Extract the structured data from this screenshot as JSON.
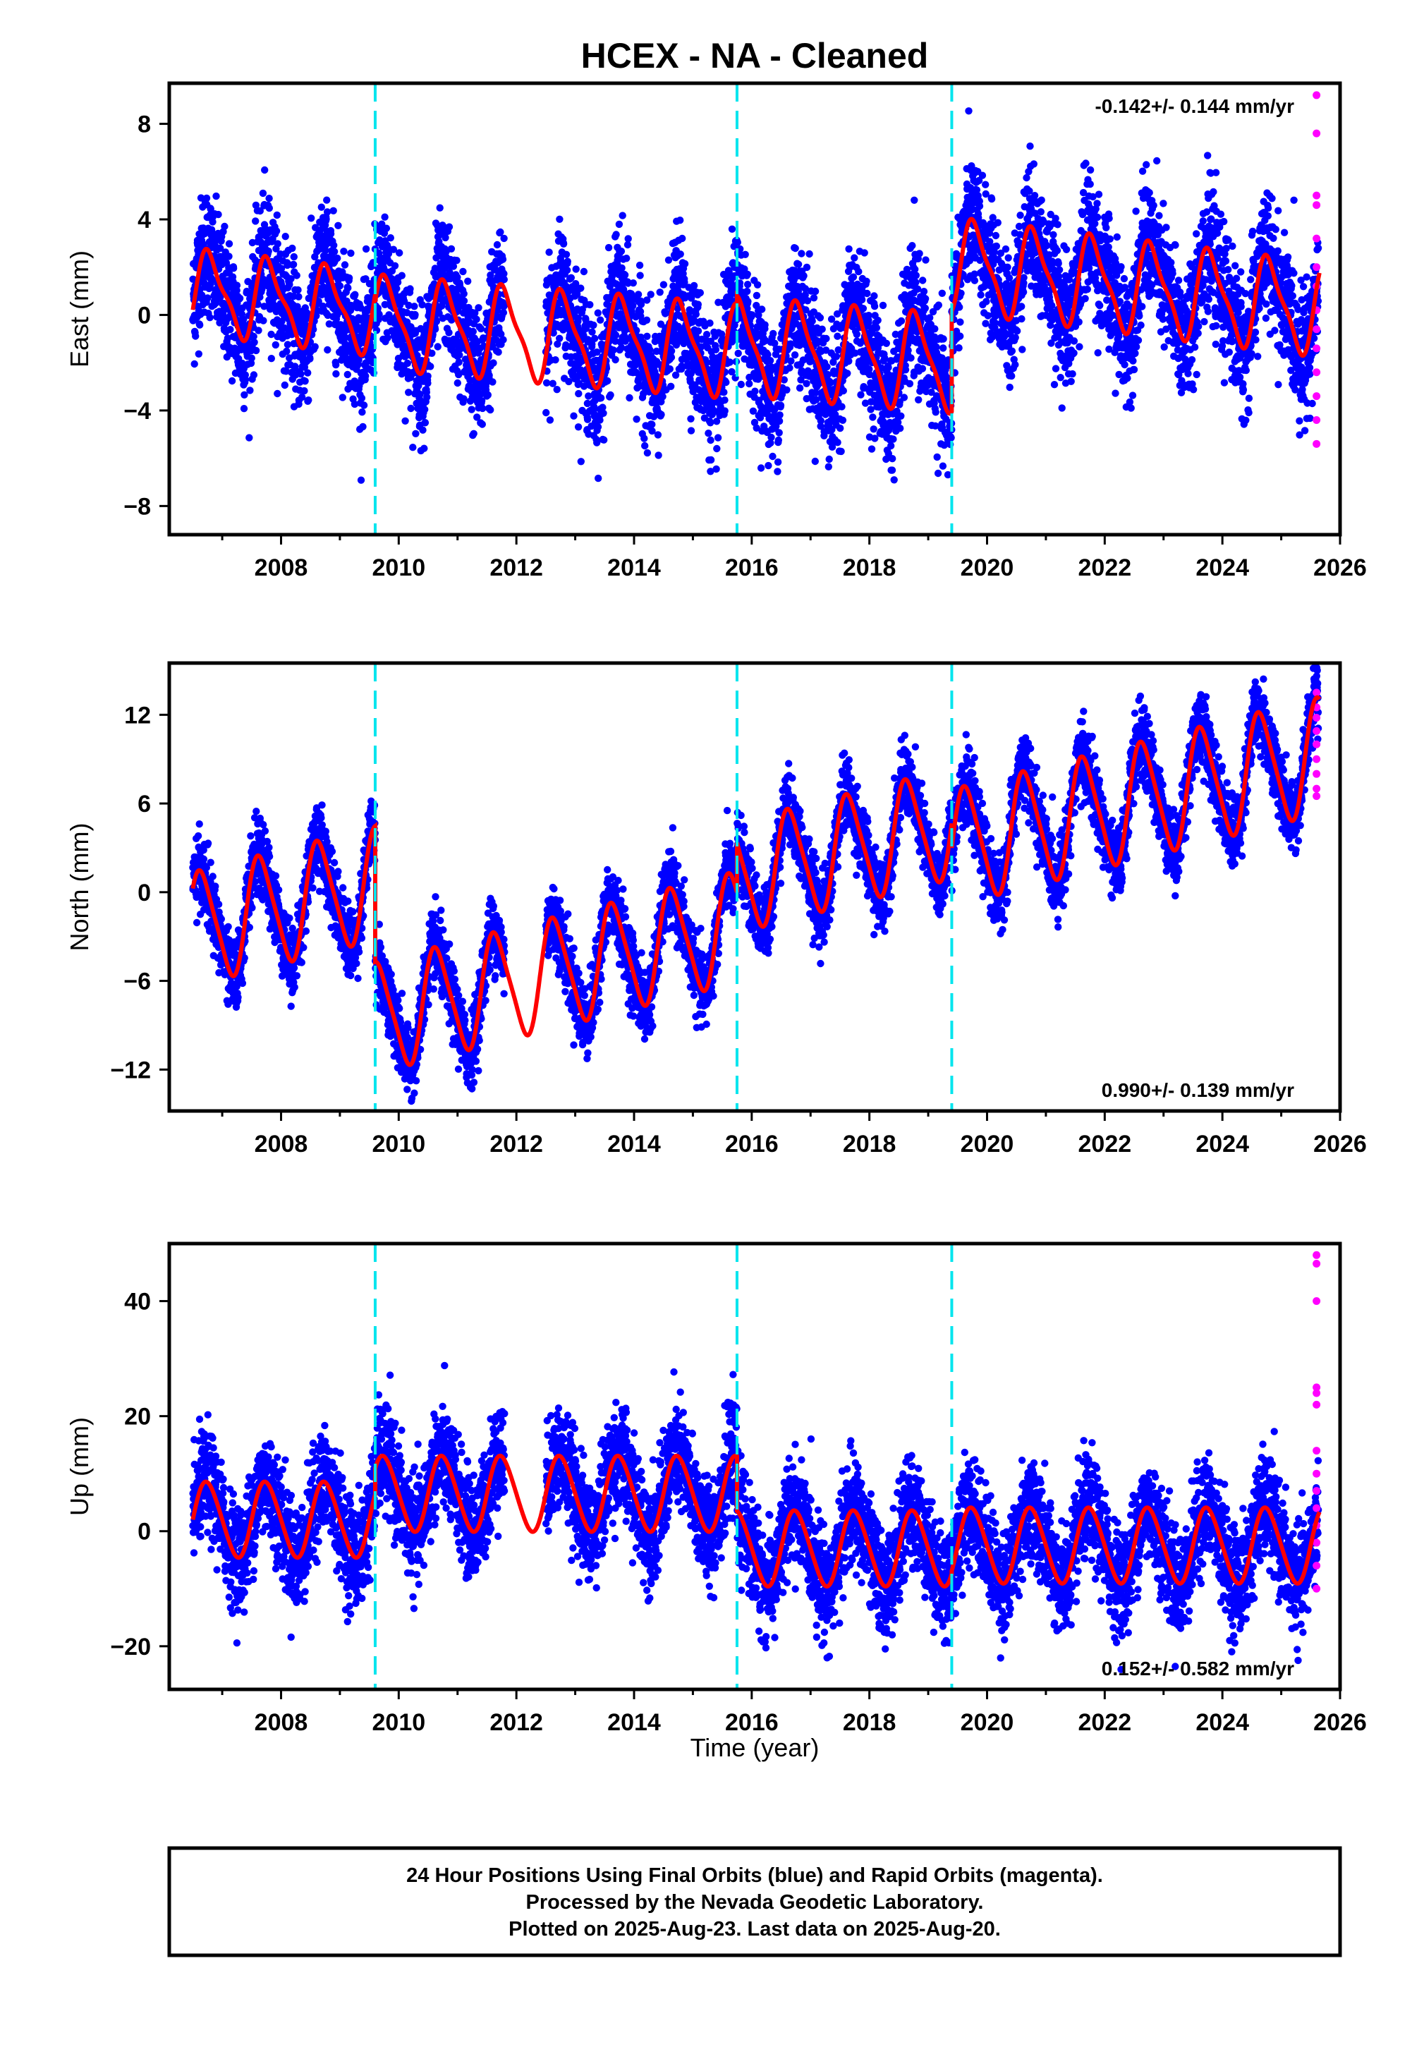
{
  "title": "HCEX  - NA - Cleaned",
  "xlabel": "Time (year)",
  "footer": [
    "24 Hour Positions Using Final Orbits (blue) and Rapid Orbits (magenta).",
    "Processed by the Nevada Geodetic Laboratory.",
    "Plotted on 2025-Aug-23. Last data on 2025-Aug-20."
  ],
  "colors": {
    "final_orbits": "#0000ff",
    "rapid_orbits": "#ff00ff",
    "model": "#ff0000",
    "equipment_change": "#00e5ee"
  },
  "chart_data": [
    {
      "type": "scatter",
      "component": "east",
      "ylabel": "East (mm)",
      "rate_text": "-0.142+/- 0.144 mm/yr",
      "xlim": [
        2006.1,
        2026.0
      ],
      "ylim": [
        -9.2,
        9.7
      ],
      "xticks": [
        2008,
        2010,
        2012,
        2014,
        2016,
        2018,
        2020,
        2022,
        2024,
        2026
      ],
      "yticks": [
        -8,
        -4,
        0,
        4,
        8
      ],
      "equipment_changes": [
        2009.6,
        2015.75,
        2019.4
      ],
      "model": {
        "segments": [
          {
            "start": 2006.5,
            "end": 2009.6,
            "offset": 1.0,
            "trend": -0.3,
            "annual": 1.6,
            "phase": 2006.55,
            "semi": 0.5
          },
          {
            "start": 2009.6,
            "end": 2015.75,
            "offset": -0.3,
            "trend": -0.2,
            "annual": 1.8,
            "phase": 2006.55,
            "semi": 0.5
          },
          {
            "start": 2015.75,
            "end": 2019.4,
            "offset": -1.3,
            "trend": -0.2,
            "annual": 1.9,
            "phase": 2006.55,
            "semi": 0.5
          },
          {
            "start": 2019.4,
            "end": 2025.65,
            "offset": 2.1,
            "trend": -0.3,
            "annual": 1.8,
            "phase": 2006.55,
            "semi": 0.5
          }
        ]
      },
      "noise_mm": 1.3,
      "gaps": [
        [
          2011.8,
          2012.5
        ]
      ],
      "rapid_orbits": {
        "x": 2025.6,
        "y": [
          9.2,
          7.6,
          5.0,
          4.6,
          3.2,
          2.0,
          1.2,
          0.2,
          -0.6,
          -1.4,
          -2.4,
          -3.4,
          -4.4,
          -5.4
        ]
      }
    },
    {
      "type": "scatter",
      "component": "north",
      "ylabel": "North (mm)",
      "rate_text": "0.990+/- 0.139 mm/yr",
      "xlim": [
        2006.1,
        2026.0
      ],
      "ylim": [
        -14.8,
        15.5
      ],
      "xticks": [
        2008,
        2010,
        2012,
        2014,
        2016,
        2018,
        2020,
        2022,
        2024,
        2026
      ],
      "yticks": [
        -12,
        -6,
        0,
        6,
        12
      ],
      "equipment_changes": [
        2009.6,
        2015.75,
        2019.4
      ],
      "model": {
        "segments": [
          {
            "start": 2006.5,
            "end": 2009.6,
            "offset": -2.5,
            "trend": 1.0,
            "annual": 3.7,
            "phase": 2006.4,
            "semi": 0.6
          },
          {
            "start": 2009.6,
            "end": 2015.75,
            "offset": -8.5,
            "trend": 1.0,
            "annual": 3.6,
            "phase": 2006.4,
            "semi": 0.6
          },
          {
            "start": 2015.75,
            "end": 2019.4,
            "offset": 1.0,
            "trend": 1.0,
            "annual": 3.6,
            "phase": 2006.4,
            "semi": 0.6
          },
          {
            "start": 2019.4,
            "end": 2025.65,
            "offset": 3.0,
            "trend": 1.0,
            "annual": 3.8,
            "phase": 2006.4,
            "semi": 0.6
          }
        ]
      },
      "noise_mm": 1.2,
      "gaps": [
        [
          2011.8,
          2012.5
        ]
      ],
      "rapid_orbits": {
        "x": 2025.6,
        "y": [
          13.5,
          12.5,
          11.8,
          10.9,
          10.0,
          9.0,
          8.0,
          7.0,
          6.5
        ]
      }
    },
    {
      "type": "scatter",
      "component": "up",
      "ylabel": "Up (mm)",
      "rate_text": "0.152+/- 0.582 mm/yr",
      "xlim": [
        2006.1,
        2026.0
      ],
      "ylim": [
        -27.5,
        50.0
      ],
      "xticks": [
        2008,
        2010,
        2012,
        2014,
        2016,
        2018,
        2020,
        2022,
        2024,
        2026
      ],
      "yticks": [
        -20,
        0,
        20,
        40
      ],
      "equipment_changes": [
        2009.6,
        2015.75,
        2019.4
      ],
      "model": {
        "segments": [
          {
            "start": 2006.5,
            "end": 2009.6,
            "offset": 2.0,
            "trend": 0.0,
            "annual": 6.5,
            "phase": 2006.5,
            "semi": 0.6
          },
          {
            "start": 2009.6,
            "end": 2015.75,
            "offset": 6.5,
            "trend": 0.0,
            "annual": 6.5,
            "phase": 2006.5,
            "semi": 0.6
          },
          {
            "start": 2015.75,
            "end": 2019.4,
            "offset": -3.0,
            "trend": 0.0,
            "annual": 6.5,
            "phase": 2006.5,
            "semi": 0.6
          },
          {
            "start": 2019.4,
            "end": 2025.65,
            "offset": -2.5,
            "trend": 0.0,
            "annual": 6.5,
            "phase": 2006.5,
            "semi": 0.6
          }
        ]
      },
      "noise_mm": 4.5,
      "gaps": [
        [
          2011.8,
          2012.5
        ]
      ],
      "rapid_orbits": {
        "x": 2025.6,
        "y": [
          48.0,
          46.5,
          40.0,
          25.0,
          24.0,
          22.0,
          14.0,
          10.0,
          7.0,
          4.0,
          1.0,
          -2.0,
          -6.0,
          -10.0
        ]
      }
    }
  ]
}
